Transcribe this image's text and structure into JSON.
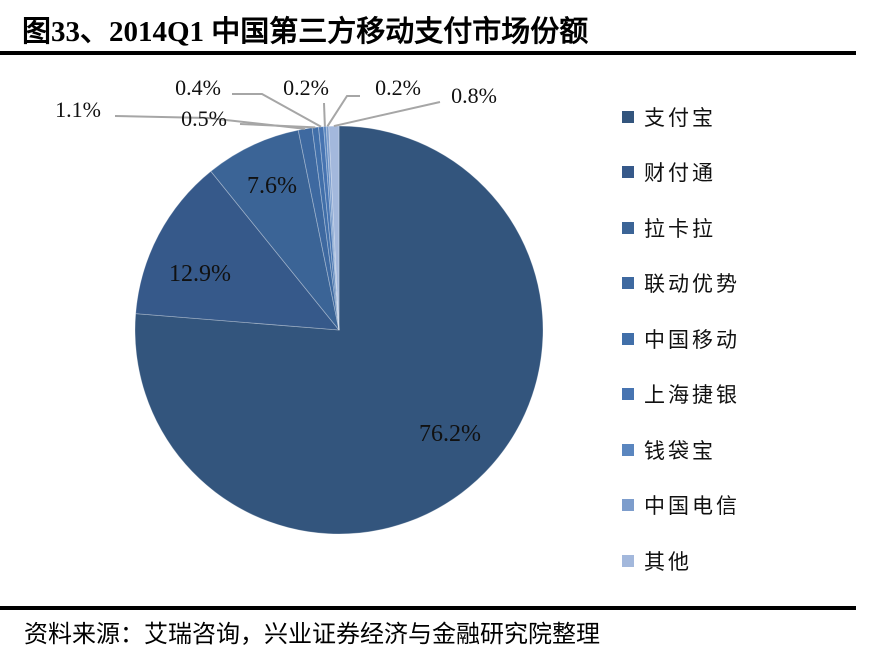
{
  "header": {
    "title": "图33、2014Q1 中国第三方移动支付市场份额"
  },
  "footer": {
    "source": "资料来源：艾瑞咨询，兴业证券经济与金融研究院整理"
  },
  "chart_data": {
    "type": "pie",
    "title": "2014Q1 中国第三方移动支付市场份额",
    "start_angle": "12 o'clock",
    "direction": "clockwise",
    "categories": [
      "支付宝",
      "财付通",
      "拉卡拉",
      "联动优势",
      "中国移动",
      "上海捷银",
      "钱袋宝",
      "中国电信",
      "其他"
    ],
    "values": [
      76.2,
      12.9,
      7.6,
      1.1,
      0.5,
      0.4,
      0.2,
      0.2,
      0.8
    ],
    "labels": [
      "76.2%",
      "12.9%",
      "7.6%",
      "1.1%",
      "0.5%",
      "0.4%",
      "0.2%",
      "0.2%",
      "0.8%"
    ],
    "colors": [
      "#33557d",
      "#36598a",
      "#3b6496",
      "#3e69a0",
      "#416fa9",
      "#4774b1",
      "#5a86bf",
      "#7d9dcc",
      "#a3b8dc"
    ],
    "legend_position": "right",
    "unit": "%"
  },
  "legend": {
    "items": [
      {
        "label": "支付宝",
        "color": "#33557d"
      },
      {
        "label": "财付通",
        "color": "#36598a"
      },
      {
        "label": "拉卡拉",
        "color": "#3b6496"
      },
      {
        "label": "联动优势",
        "color": "#3e69a0"
      },
      {
        "label": "中国移动",
        "color": "#416fa9"
      },
      {
        "label": "上海捷银",
        "color": "#4774b1"
      },
      {
        "label": "钱袋宝",
        "color": "#5a86bf"
      },
      {
        "label": "中国电信",
        "color": "#7d9dcc"
      },
      {
        "label": "其他",
        "color": "#a3b8dc"
      }
    ]
  }
}
